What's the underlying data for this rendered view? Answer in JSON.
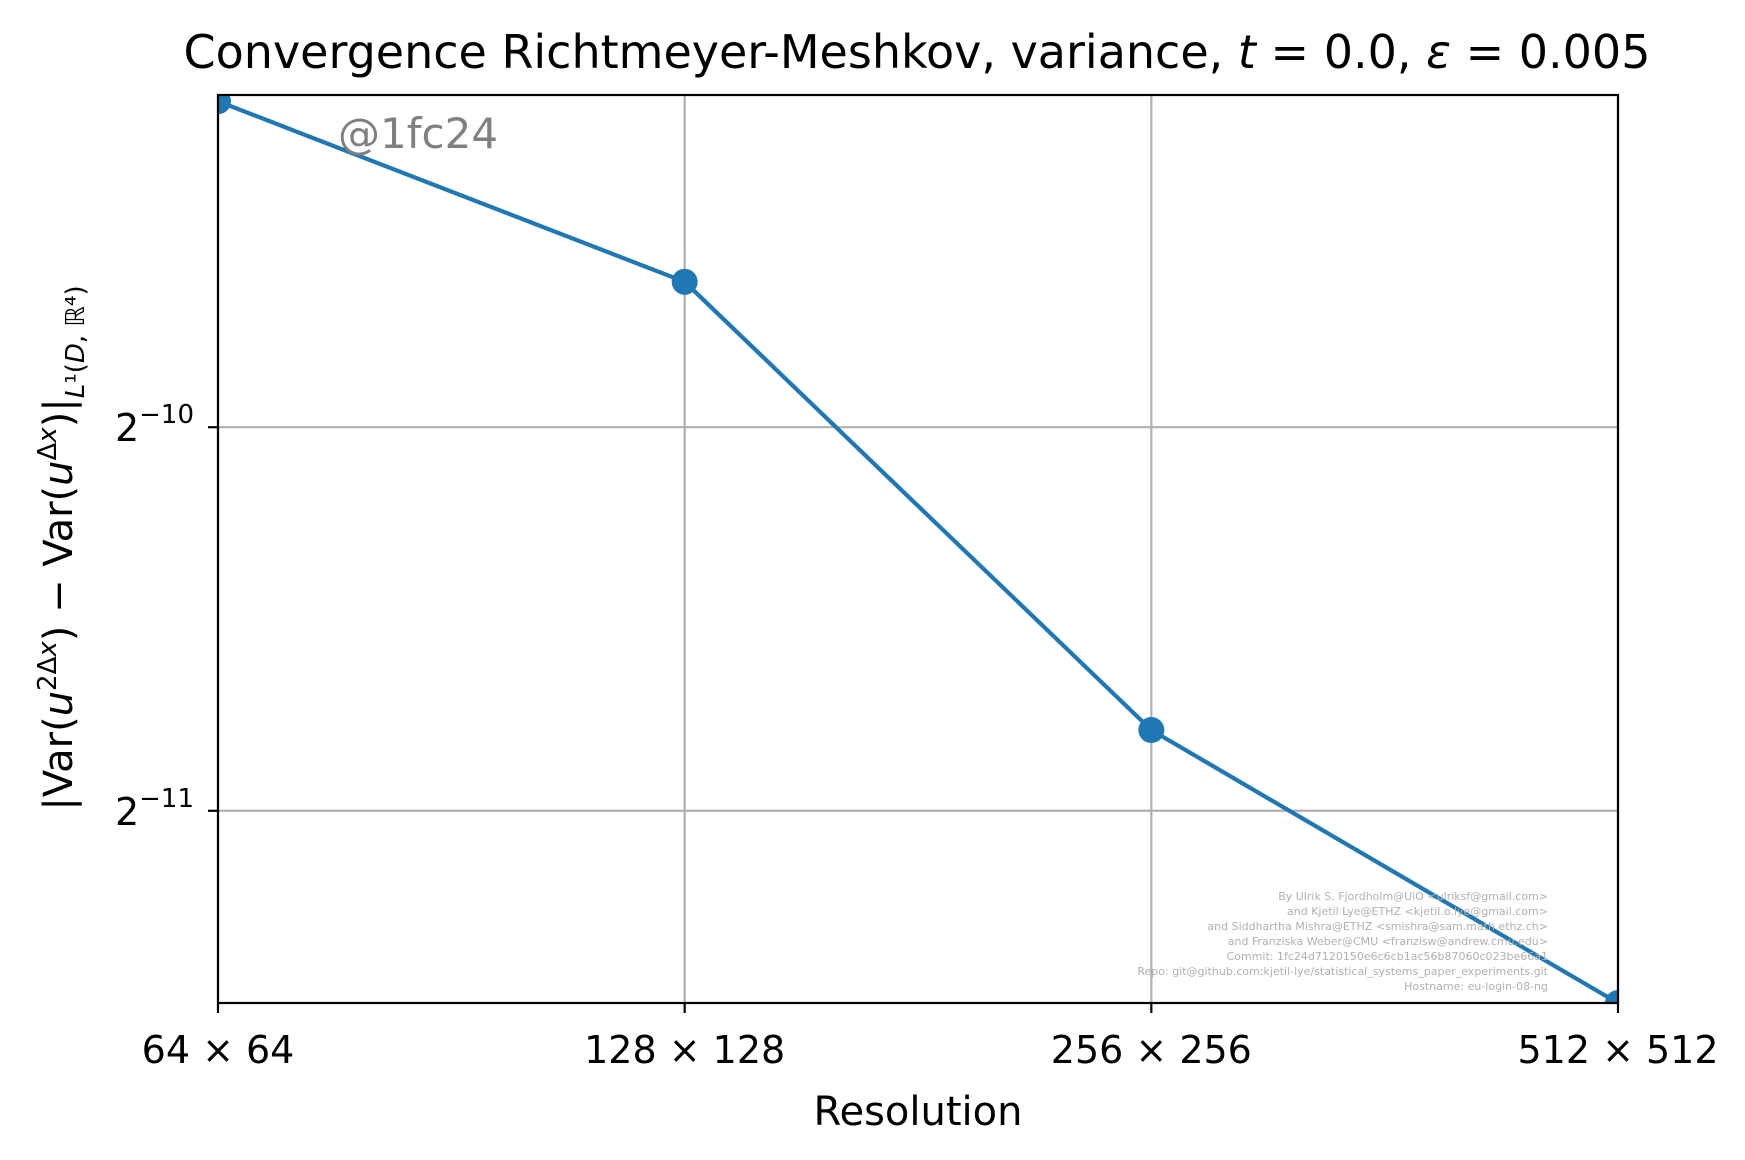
{
  "colors": {
    "series": "#1f77b4",
    "grid": "#b0b0b0",
    "watermark": "#808080",
    "credits": "#b0b0b0"
  },
  "chart_data": {
    "type": "line",
    "title": "Convergence Richtmeyer-Meshkov, variance, t = 0.0, ε = 0.005",
    "xlabel": "Resolution",
    "ylabel": "|Var(u^{2Δx}) − Var(u^{Δx})|_{L¹(D,ℝ⁴)}",
    "x_scale": "log2",
    "y_scale": "log2",
    "x": [
      64,
      128,
      256,
      512
    ],
    "x_tick_labels": [
      "64 × 64",
      "128 × 128",
      "256 × 256",
      "512 × 512"
    ],
    "y_ticks": [
      {
        "value": 0.0009765625,
        "base": "2",
        "exponent": "−10"
      },
      {
        "value": 0.00048828125,
        "base": "2",
        "exponent": "−11"
      }
    ],
    "xlim": [
      64,
      512
    ],
    "ylim": [
      0.000345,
      0.00178
    ],
    "grid": true,
    "series": [
      {
        "values": [
          0.00176,
          0.00127,
          0.000565,
          0.000345
        ],
        "marker": "circle"
      }
    ],
    "annotations": {
      "watermark": "@1fc24",
      "credits": [
        "By Ulrik S. Fjordholm@UiO <ulriksf@gmail.com>",
        "and Kjetil Lye@ETHZ <kjetil.o.lye@gmail.com>",
        "and Siddhartha Mishra@ETHZ <smishra@sam.math.ethz.ch>",
        "and Franziska Weber@CMU <franzisw@andrew.cmu.edu>",
        "Commit: 1fc24d7120150e6c6cb1ac56b87060c023be66a1",
        "Repo: git@github.com:kjetil-lye/statistical_systems_paper_experiments.git",
        "Hostname: eu-login-08-ng"
      ]
    }
  }
}
